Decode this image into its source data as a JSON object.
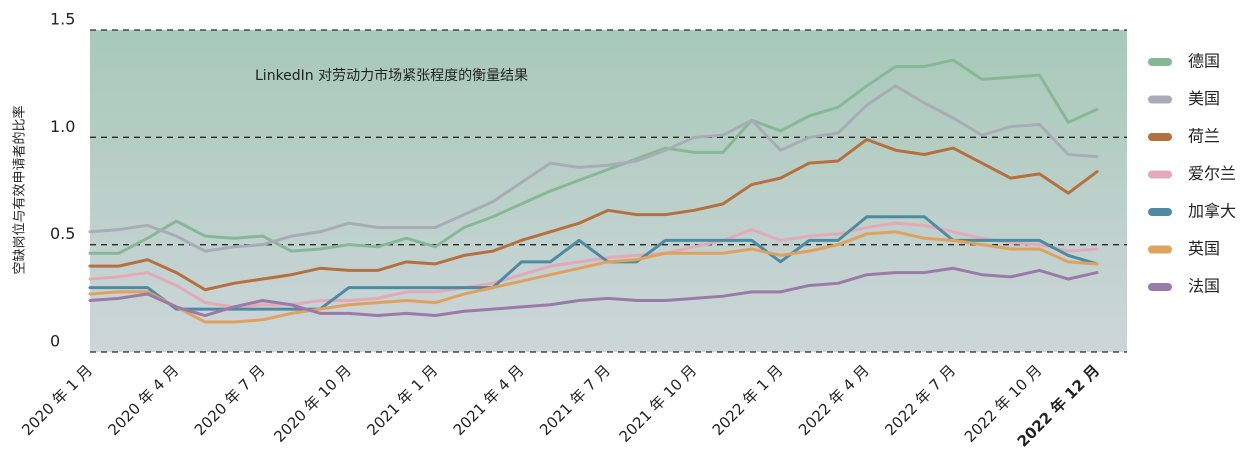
{
  "chart_data": {
    "type": "line",
    "annotation": "LinkedIn 对劳动力市场紧张程度的衡量结果",
    "y_label": "空缺岗位与有效申请者的比率",
    "categories": [
      "2020 年 1 月",
      null,
      null,
      "2020 年 4 月",
      null,
      null,
      "2020 年 7 月",
      null,
      null,
      "2020 年 10 月",
      null,
      null,
      "2021 年 1 月",
      null,
      null,
      "2021 年 4 月",
      null,
      null,
      "2021 年 7 月",
      null,
      null,
      "2021 年 10 月",
      null,
      null,
      "2022 年 1 月",
      null,
      null,
      "2022 年 4 月",
      null,
      null,
      "2022 年 7 月",
      null,
      null,
      "2022 年 10 月",
      null,
      "2022 年 12 月"
    ],
    "ylim": [
      0,
      1.5
    ],
    "yticks": [
      0,
      0.5,
      {
        "value": 1,
        "label": "1.0"
      },
      1.5
    ],
    "grid": true,
    "legend": "right",
    "series": [
      {
        "name": "德国",
        "color": "#86b896",
        "values": [
          0.46,
          0.46,
          0.53,
          0.61,
          0.54,
          0.53,
          0.54,
          0.47,
          0.48,
          0.5,
          0.49,
          0.53,
          0.49,
          0.58,
          0.63,
          0.69,
          0.75,
          0.8,
          0.85,
          0.9,
          0.95,
          0.93,
          0.93,
          1.08,
          1.03,
          1.1,
          1.14,
          1.24,
          1.33,
          1.33,
          1.36,
          1.27,
          1.28,
          1.29,
          1.07,
          1.13
        ]
      },
      {
        "name": "美国",
        "color": "#a9acb6",
        "values": [
          0.56,
          0.57,
          0.59,
          0.54,
          0.47,
          0.49,
          0.5,
          0.54,
          0.56,
          0.6,
          0.58,
          0.58,
          0.58,
          0.64,
          0.7,
          0.79,
          0.88,
          0.86,
          0.87,
          0.89,
          0.94,
          1.0,
          1.01,
          1.08,
          0.94,
          1.0,
          1.02,
          1.15,
          1.24,
          1.16,
          1.09,
          1.01,
          1.05,
          1.06,
          0.92,
          0.91
        ]
      },
      {
        "name": "荷兰",
        "color": "#b5703f",
        "values": [
          0.4,
          0.4,
          0.43,
          0.37,
          0.29,
          0.32,
          0.34,
          0.36,
          0.39,
          0.38,
          0.38,
          0.42,
          0.41,
          0.45,
          0.47,
          0.52,
          0.56,
          0.6,
          0.66,
          0.64,
          0.64,
          0.66,
          0.69,
          0.78,
          0.81,
          0.88,
          0.89,
          0.99,
          0.94,
          0.92,
          0.95,
          0.88,
          0.81,
          0.83,
          0.74,
          0.84
        ]
      },
      {
        "name": "爱尔兰",
        "color": "#e3a9b8",
        "values": [
          0.34,
          0.35,
          0.37,
          0.31,
          0.23,
          0.21,
          0.22,
          0.22,
          0.24,
          0.24,
          0.25,
          0.28,
          0.28,
          0.3,
          0.32,
          0.36,
          0.4,
          0.42,
          0.44,
          0.45,
          0.46,
          0.49,
          0.52,
          0.57,
          0.52,
          0.54,
          0.55,
          0.58,
          0.6,
          0.59,
          0.56,
          0.53,
          0.51,
          0.5,
          0.47,
          0.48
        ]
      },
      {
        "name": "加拿大",
        "color": "#4e8ba3",
        "values": [
          0.3,
          0.3,
          0.3,
          0.2,
          0.2,
          0.2,
          0.2,
          0.2,
          0.2,
          0.3,
          0.3,
          0.3,
          0.3,
          0.3,
          0.3,
          0.42,
          0.42,
          0.52,
          0.42,
          0.42,
          0.52,
          0.52,
          0.52,
          0.52,
          0.42,
          0.52,
          0.52,
          0.63,
          0.63,
          0.63,
          0.52,
          0.52,
          0.52,
          0.52,
          0.45,
          0.41
        ]
      },
      {
        "name": "英国",
        "color": "#e0a15e",
        "values": [
          0.27,
          0.28,
          0.28,
          0.21,
          0.14,
          0.14,
          0.15,
          0.18,
          0.2,
          0.22,
          0.23,
          0.24,
          0.23,
          0.27,
          0.3,
          0.33,
          0.36,
          0.39,
          0.42,
          0.43,
          0.46,
          0.46,
          0.46,
          0.48,
          0.45,
          0.47,
          0.5,
          0.55,
          0.56,
          0.53,
          0.52,
          0.5,
          0.48,
          0.48,
          0.42,
          0.41
        ]
      },
      {
        "name": "法国",
        "color": "#9a7aa8",
        "values": [
          0.24,
          0.25,
          0.27,
          0.21,
          0.17,
          0.21,
          0.24,
          0.22,
          0.18,
          0.18,
          0.17,
          0.18,
          0.17,
          0.19,
          0.2,
          0.21,
          0.22,
          0.24,
          0.25,
          0.24,
          0.24,
          0.25,
          0.26,
          0.28,
          0.28,
          0.31,
          0.32,
          0.36,
          0.37,
          0.37,
          0.39,
          0.36,
          0.35,
          0.38,
          0.34,
          0.37
        ]
      }
    ]
  }
}
